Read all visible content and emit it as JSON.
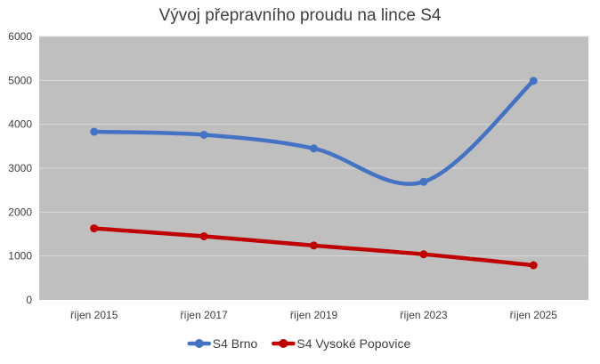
{
  "chart_data": {
    "type": "line",
    "title": "Vývoj přepravního proudu na lince S4",
    "xlabel": "",
    "ylabel": "",
    "categories": [
      "říjen 2015",
      "říjen 2017",
      "říjen 2019",
      "říjen 2023",
      "říjen 2025"
    ],
    "ylim": [
      0,
      6000
    ],
    "yticks": [
      0,
      1000,
      2000,
      3000,
      4000,
      5000,
      6000
    ],
    "grid": true,
    "legend_position": "bottom",
    "plot_background": "#bfbfbf",
    "series": [
      {
        "name": "S4 Brno",
        "color": "#4472c4",
        "values": [
          3830,
          3760,
          3450,
          2690,
          4990
        ]
      },
      {
        "name": "S4 Vysoké Popovice",
        "color": "#c00000",
        "values": [
          1630,
          1450,
          1240,
          1040,
          790
        ]
      }
    ]
  }
}
